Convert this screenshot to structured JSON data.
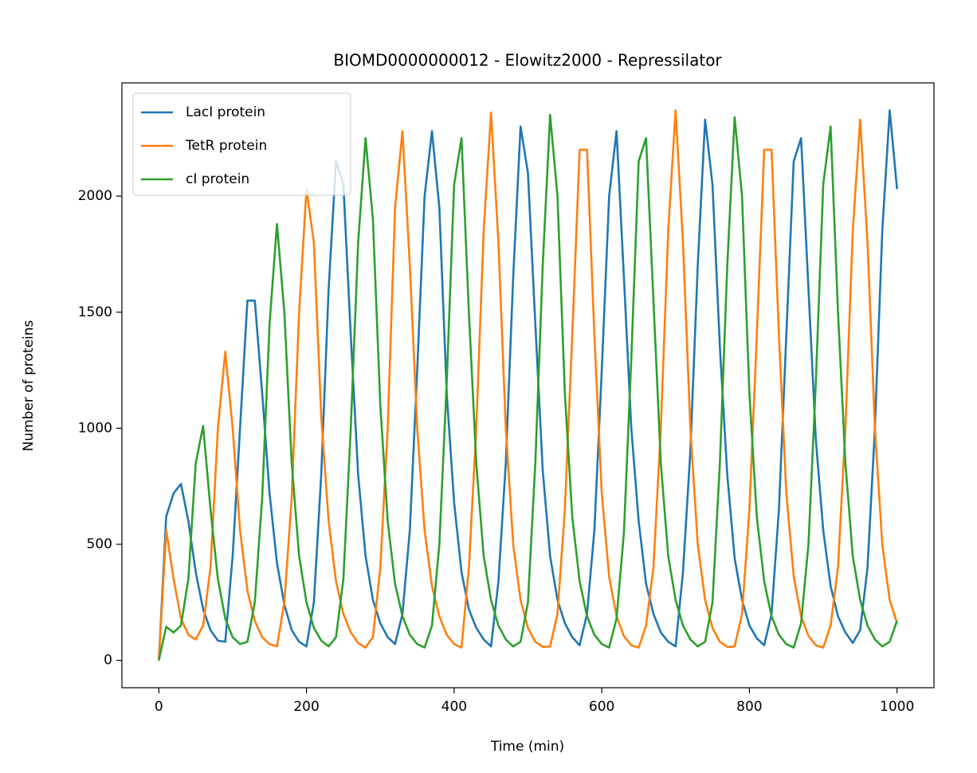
{
  "chart_data": {
    "type": "line",
    "title": "BIOMD0000000012 - Elowitz2000 - Repressilator",
    "x_label": "Time (min)",
    "y_label": "Number of proteins",
    "x": [
      0,
      10,
      20,
      30,
      40,
      50,
      60,
      70,
      80,
      90,
      100,
      110,
      120,
      130,
      140,
      150,
      160,
      170,
      180,
      190,
      200,
      210,
      220,
      230,
      240,
      250,
      260,
      270,
      280,
      290,
      300,
      310,
      320,
      330,
      340,
      350,
      360,
      370,
      380,
      390,
      400,
      410,
      420,
      430,
      440,
      450,
      460,
      470,
      480,
      490,
      500,
      510,
      520,
      530,
      540,
      550,
      560,
      570,
      580,
      590,
      600,
      610,
      620,
      630,
      640,
      650,
      660,
      670,
      680,
      690,
      700,
      710,
      720,
      730,
      740,
      750,
      760,
      770,
      780,
      790,
      800,
      810,
      820,
      830,
      840,
      850,
      860,
      870,
      880,
      890,
      900,
      910,
      920,
      930,
      940,
      950,
      960,
      970,
      980,
      990,
      1000
    ],
    "series": [
      {
        "name": "LacI protein",
        "color": "#1f77b4",
        "values": [
          0,
          620,
          720,
          760,
          600,
          380,
          220,
          130,
          85,
          80,
          450,
          1000,
          1550,
          1550,
          1150,
          720,
          420,
          240,
          130,
          80,
          60,
          250,
          800,
          1600,
          2150,
          2050,
          1400,
          800,
          450,
          260,
          160,
          100,
          70,
          200,
          560,
          1250,
          2000,
          2280,
          1950,
          1150,
          680,
          380,
          220,
          140,
          90,
          60,
          340,
          850,
          1650,
          2300,
          2100,
          1450,
          820,
          450,
          260,
          160,
          100,
          65,
          200,
          560,
          1250,
          2000,
          2280,
          1650,
          1000,
          600,
          330,
          200,
          120,
          80,
          60,
          380,
          900,
          1700,
          2330,
          2050,
          1350,
          800,
          440,
          260,
          150,
          95,
          65,
          200,
          650,
          1400,
          2150,
          2250,
          1600,
          950,
          560,
          320,
          190,
          120,
          75,
          130,
          400,
          1000,
          1850,
          2370,
          2030
        ]
      },
      {
        "name": "TetR protein",
        "color": "#ff7f0e",
        "values": [
          0,
          560,
          350,
          180,
          110,
          90,
          150,
          400,
          1000,
          1330,
          1000,
          560,
          300,
          170,
          100,
          70,
          60,
          250,
          700,
          1500,
          2030,
          1800,
          1050,
          600,
          340,
          200,
          120,
          75,
          55,
          100,
          400,
          1000,
          1950,
          2280,
          1700,
          1000,
          560,
          320,
          190,
          110,
          70,
          55,
          400,
          1000,
          1850,
          2360,
          1800,
          1000,
          500,
          260,
          140,
          80,
          58,
          60,
          200,
          650,
          1400,
          2200,
          2200,
          1400,
          720,
          360,
          190,
          105,
          65,
          55,
          150,
          400,
          1000,
          1850,
          2370,
          1800,
          1000,
          500,
          260,
          140,
          80,
          58,
          60,
          200,
          650,
          1400,
          2200,
          2200,
          1400,
          720,
          360,
          190,
          105,
          65,
          55,
          150,
          400,
          1000,
          1850,
          2330,
          1800,
          1000,
          500,
          260,
          160
        ]
      },
      {
        "name": "cI protein",
        "color": "#2ca02c",
        "values": [
          0,
          145,
          120,
          150,
          350,
          850,
          1010,
          650,
          350,
          180,
          100,
          70,
          80,
          250,
          700,
          1450,
          1880,
          1500,
          850,
          450,
          250,
          140,
          85,
          60,
          100,
          350,
          1000,
          1800,
          2250,
          1900,
          1100,
          600,
          330,
          190,
          110,
          70,
          55,
          150,
          500,
          1200,
          2050,
          2250,
          1500,
          850,
          450,
          260,
          150,
          90,
          60,
          80,
          250,
          850,
          1700,
          2350,
          2000,
          1150,
          620,
          340,
          190,
          110,
          70,
          55,
          180,
          550,
          1300,
          2150,
          2250,
          1550,
          850,
          450,
          260,
          150,
          90,
          60,
          80,
          250,
          850,
          1700,
          2340,
          2000,
          1150,
          620,
          340,
          190,
          110,
          70,
          55,
          160,
          500,
          1200,
          2050,
          2300,
          1500,
          850,
          450,
          260,
          150,
          90,
          60,
          80,
          170
        ]
      }
    ],
    "xlim": [
      -50,
      1050
    ],
    "xticks": [
      0,
      200,
      400,
      600,
      800,
      1000
    ],
    "ylim": [
      -118,
      2488
    ],
    "yticks": [
      0,
      500,
      1000,
      1500,
      2000
    ],
    "legend": "upper left"
  }
}
